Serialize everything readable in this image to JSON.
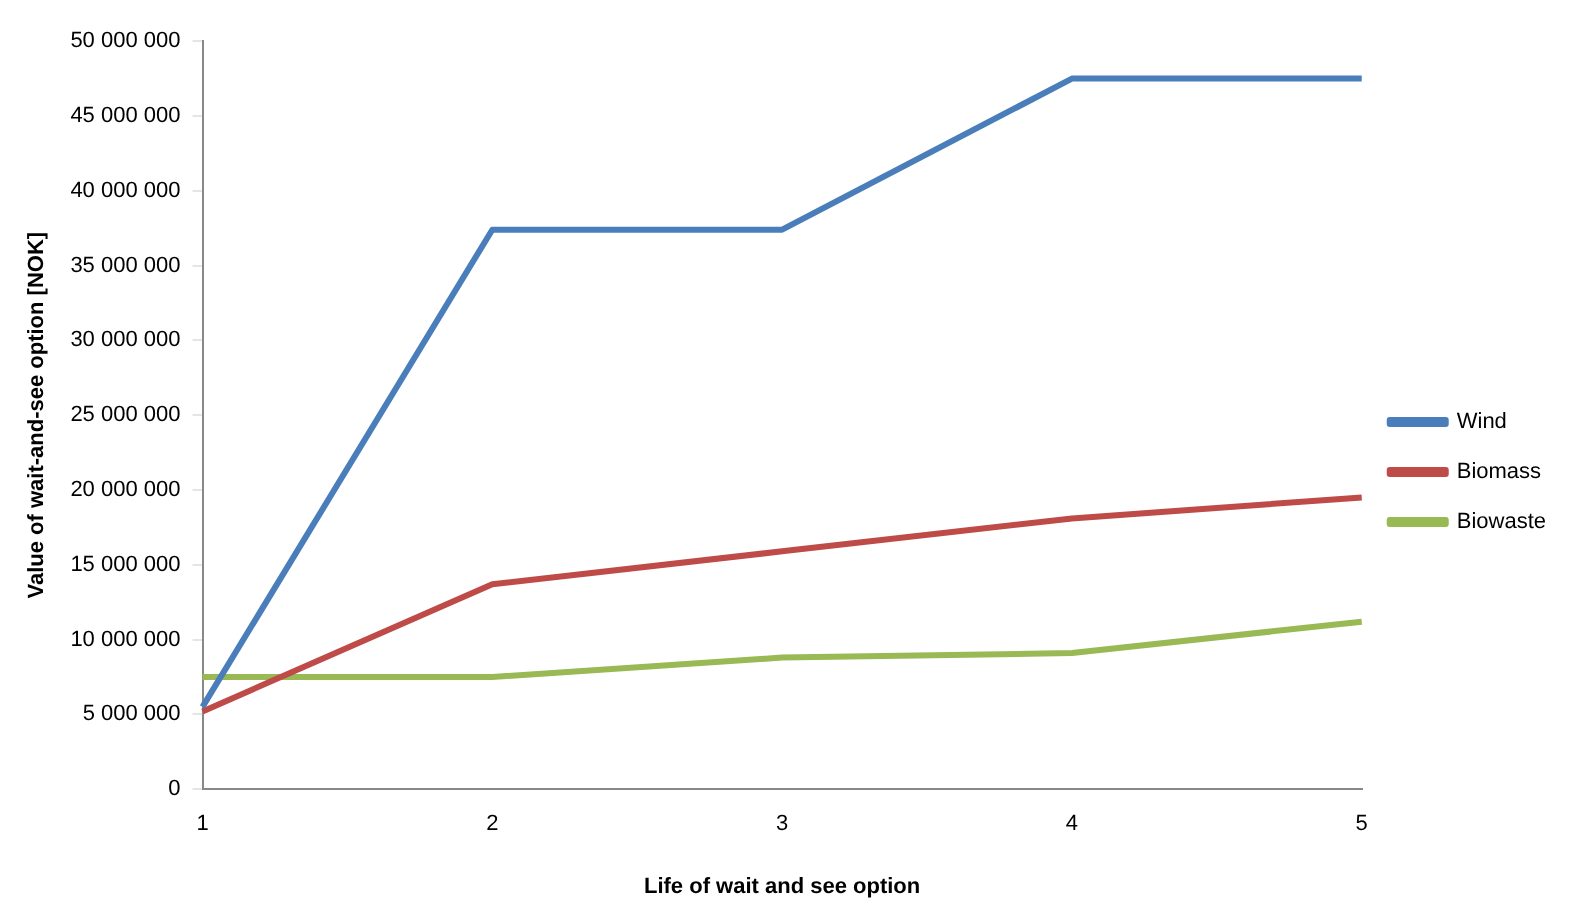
{
  "chart_data": {
    "type": "line",
    "xlabel": "Life of wait and see option",
    "ylabel": "Value of wait-and-see option [NOK]",
    "categories": [
      "1",
      "2",
      "3",
      "4",
      "5"
    ],
    "series": [
      {
        "name": "Wind",
        "color": "#4a7ebb",
        "values": [
          5500000,
          37400000,
          37400000,
          47500000,
          47500000
        ]
      },
      {
        "name": "Biomass",
        "color": "#be4b48",
        "values": [
          5200000,
          13700000,
          15900000,
          18100000,
          19500000
        ]
      },
      {
        "name": "Biowaste",
        "color": "#98b954",
        "values": [
          7500000,
          7500000,
          8800000,
          9100000,
          11200000
        ]
      }
    ],
    "ylim": [
      0,
      50000000
    ],
    "yticks": [
      {
        "value": 0,
        "label": "0"
      },
      {
        "value": 5000000,
        "label": "5 000 000"
      },
      {
        "value": 10000000,
        "label": "10 000 000"
      },
      {
        "value": 15000000,
        "label": "15 000 000"
      },
      {
        "value": 20000000,
        "label": "20 000 000"
      },
      {
        "value": 25000000,
        "label": "25 000 000"
      },
      {
        "value": 30000000,
        "label": "30 000 000"
      },
      {
        "value": 35000000,
        "label": "35 000 000"
      },
      {
        "value": 40000000,
        "label": "40 000 000"
      },
      {
        "value": 45000000,
        "label": "45 000 000"
      },
      {
        "value": 50000000,
        "label": "50 000 000"
      }
    ],
    "grid": false,
    "legend": "right",
    "marker": "none",
    "line_style": "solid"
  }
}
